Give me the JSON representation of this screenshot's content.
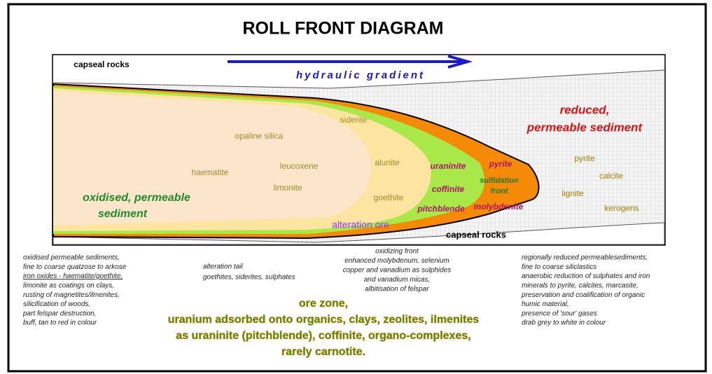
{
  "title": "ROLL FRONT DIAGRAM",
  "diagram": {
    "capseal_top": "capseal rocks",
    "hydraulic_gradient": "hydraulic gradient",
    "reduced_sediment": [
      "reduced,",
      "permeable sediment"
    ],
    "oxidised_sediment": [
      "oxidised, permeable",
      "sediment"
    ],
    "oxidised_minerals": [
      "siderite",
      "opaline silica",
      "alunite",
      "haematite",
      "leucoxene",
      "limonite",
      "goethite"
    ],
    "ore_minerals": [
      "uraninite",
      "coffinite",
      "pitchblende"
    ],
    "front_minerals": [
      "pyrite",
      "sulfidation",
      "front",
      "molybdenite"
    ],
    "reduced_minerals": [
      "pyrite",
      "calcite",
      "lignite",
      "kerogens"
    ],
    "alteration_ore": "alteration ore",
    "capseal_bottom": "capseal rocks"
  },
  "notes": {
    "oxidised": [
      "oxidised permeable sediments,",
      "fine to coarse quatzose to arkose",
      "iron oxides - haematite/goethite,",
      "limonite as coatings on clays,",
      "rusting of magnetites/ilmenites,",
      "silicification of woods,",
      "part felspar destruction,",
      "buff, tan to red in colour"
    ],
    "alteration_tail": [
      "alteration tail",
      "goethites, siderites, sulphates"
    ],
    "oxidizing_front": [
      "oxidizing front",
      "enhanced molybdenum, selenium",
      "copper and vanadium as sulphides",
      "and vanadium micas,",
      "albitisation of felspar"
    ],
    "reduced": [
      "regionally reduced permeablesediments,",
      "fine to coarse siliclastics",
      "anaerobic reduction of sulphates and iron",
      "minerals to pyrite, calcites, marcasite,",
      "preservation and coalification of organic",
      "humic material,",
      "presence of 'sour' gases",
      "drab grey to white in colour"
    ],
    "ore_zone": [
      "ore zone,",
      "uranium adsorbed onto organics, clays, zeolites, ilmenites",
      "as uraninite (pitchblende), coffinite, organo-complexes,",
      "rarely carnotite."
    ]
  }
}
